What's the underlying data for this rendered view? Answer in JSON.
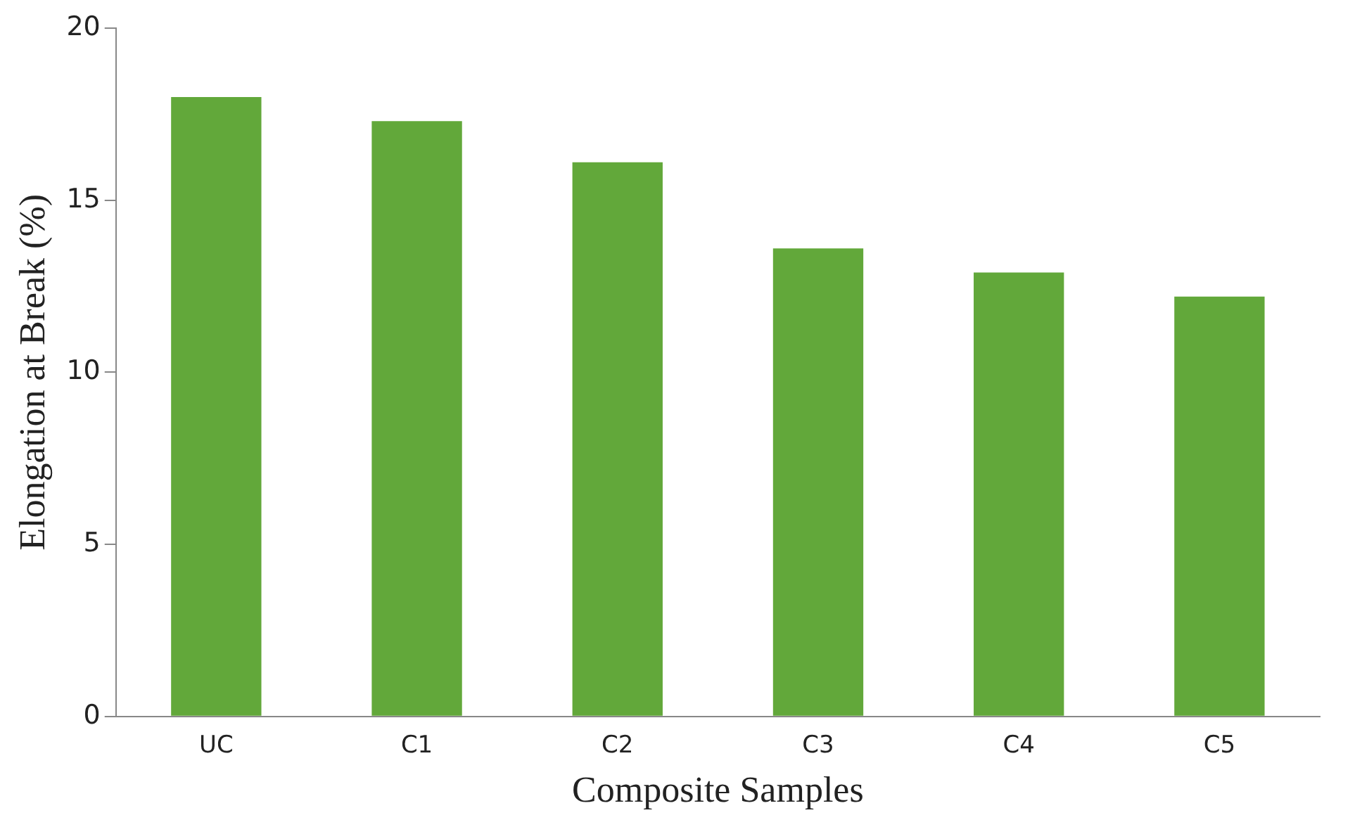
{
  "chart_data": {
    "type": "bar",
    "xlabel": "Composite Samples",
    "ylabel": "Elongation at Break (%)",
    "categories": [
      "UC",
      "C1",
      "C2",
      "C3",
      "C4",
      "C5"
    ],
    "values": [
      18,
      17.3,
      16.1,
      13.6,
      12.9,
      12.2
    ],
    "color": "#62a83a",
    "ylim": [
      0,
      20
    ],
    "yticks": [
      0,
      5,
      10,
      15,
      20
    ],
    "grid": false,
    "legend": false
  }
}
